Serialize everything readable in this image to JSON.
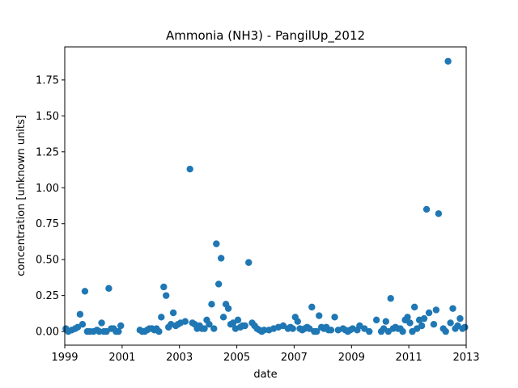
{
  "chart_data": {
    "type": "scatter",
    "title": "Ammonia (NH3) - PangilUp_2012",
    "xlabel": "date",
    "ylabel": "concentration [unknown units]",
    "xlim": [
      "1999-01-01",
      "2013-01-01"
    ],
    "ylim": [
      -0.095,
      1.98
    ],
    "x_ticks": [
      "1999",
      "2001",
      "2003",
      "2005",
      "2007",
      "2009",
      "2011",
      "2013"
    ],
    "y_ticks": [
      "0.00",
      "0.25",
      "0.50",
      "0.75",
      "1.00",
      "1.25",
      "1.50",
      "1.75"
    ],
    "grid": false,
    "legend": "none",
    "color": "#1f77b4",
    "points": [
      [
        "1999-01-15",
        0.02
      ],
      [
        "1999-02-15",
        0.0
      ],
      [
        "1999-04-01",
        0.01
      ],
      [
        "1999-05-15",
        0.02
      ],
      [
        "1999-06-15",
        0.03
      ],
      [
        "1999-07-15",
        0.12
      ],
      [
        "1999-08-15",
        0.05
      ],
      [
        "1999-09-15",
        0.28
      ],
      [
        "1999-10-15",
        0.0
      ],
      [
        "1999-11-15",
        0.0
      ],
      [
        "2000-01-01",
        0.0
      ],
      [
        "2000-02-15",
        0.01
      ],
      [
        "2000-03-15",
        0.0
      ],
      [
        "2000-04-15",
        0.06
      ],
      [
        "2000-05-15",
        0.0
      ],
      [
        "2000-06-15",
        0.0
      ],
      [
        "2000-07-15",
        0.3
      ],
      [
        "2000-08-15",
        0.02
      ],
      [
        "2000-09-15",
        0.02
      ],
      [
        "2000-10-15",
        0.0
      ],
      [
        "2000-11-15",
        0.0
      ],
      [
        "2000-12-15",
        0.04
      ],
      [
        "2001-08-15",
        0.01
      ],
      [
        "2001-09-15",
        0.0
      ],
      [
        "2001-10-15",
        0.0
      ],
      [
        "2001-11-15",
        0.01
      ],
      [
        "2001-12-15",
        0.02
      ],
      [
        "2002-01-15",
        0.02
      ],
      [
        "2002-02-15",
        0.01
      ],
      [
        "2002-03-15",
        0.02
      ],
      [
        "2002-04-15",
        0.0
      ],
      [
        "2002-05-15",
        0.1
      ],
      [
        "2002-06-15",
        0.31
      ],
      [
        "2002-07-15",
        0.25
      ],
      [
        "2002-08-15",
        0.03
      ],
      [
        "2002-09-15",
        0.05
      ],
      [
        "2002-10-15",
        0.13
      ],
      [
        "2002-11-15",
        0.04
      ],
      [
        "2002-12-15",
        0.05
      ],
      [
        "2003-01-15",
        0.06
      ],
      [
        "2003-03-15",
        0.07
      ],
      [
        "2003-05-15",
        1.13
      ],
      [
        "2003-06-15",
        0.06
      ],
      [
        "2003-07-15",
        0.05
      ],
      [
        "2003-08-15",
        0.02
      ],
      [
        "2003-09-15",
        0.04
      ],
      [
        "2003-10-15",
        0.02
      ],
      [
        "2003-11-15",
        0.02
      ],
      [
        "2003-12-15",
        0.08
      ],
      [
        "2004-01-15",
        0.05
      ],
      [
        "2004-02-15",
        0.19
      ],
      [
        "2004-03-15",
        0.02
      ],
      [
        "2004-04-15",
        0.61
      ],
      [
        "2004-05-15",
        0.33
      ],
      [
        "2004-06-15",
        0.51
      ],
      [
        "2004-07-15",
        0.1
      ],
      [
        "2004-08-15",
        0.19
      ],
      [
        "2004-09-15",
        0.16
      ],
      [
        "2004-10-15",
        0.05
      ],
      [
        "2004-11-15",
        0.06
      ],
      [
        "2004-12-15",
        0.02
      ],
      [
        "2005-01-15",
        0.08
      ],
      [
        "2005-02-15",
        0.03
      ],
      [
        "2005-03-15",
        0.04
      ],
      [
        "2005-04-15",
        0.04
      ],
      [
        "2005-06-01",
        0.48
      ],
      [
        "2005-07-15",
        0.06
      ],
      [
        "2005-08-15",
        0.04
      ],
      [
        "2005-09-15",
        0.02
      ],
      [
        "2005-10-15",
        0.01
      ],
      [
        "2005-11-15",
        0.0
      ],
      [
        "2005-12-15",
        0.01
      ],
      [
        "2006-02-15",
        0.01
      ],
      [
        "2006-04-15",
        0.02
      ],
      [
        "2006-06-15",
        0.03
      ],
      [
        "2006-08-15",
        0.04
      ],
      [
        "2006-10-15",
        0.02
      ],
      [
        "2006-11-15",
        0.03
      ],
      [
        "2006-12-15",
        0.02
      ],
      [
        "2007-01-15",
        0.1
      ],
      [
        "2007-02-15",
        0.07
      ],
      [
        "2007-03-15",
        0.02
      ],
      [
        "2007-04-15",
        0.01
      ],
      [
        "2007-05-15",
        0.02
      ],
      [
        "2007-06-15",
        0.03
      ],
      [
        "2007-07-15",
        0.02
      ],
      [
        "2007-08-15",
        0.17
      ],
      [
        "2007-09-15",
        0.0
      ],
      [
        "2007-10-15",
        0.0
      ],
      [
        "2007-11-15",
        0.11
      ],
      [
        "2007-12-15",
        0.03
      ],
      [
        "2008-01-15",
        0.02
      ],
      [
        "2008-02-15",
        0.03
      ],
      [
        "2008-03-15",
        0.01
      ],
      [
        "2008-04-15",
        0.01
      ],
      [
        "2008-06-01",
        0.1
      ],
      [
        "2008-07-15",
        0.01
      ],
      [
        "2008-09-15",
        0.02
      ],
      [
        "2008-10-15",
        0.01
      ],
      [
        "2008-11-15",
        0.0
      ],
      [
        "2008-12-15",
        0.01
      ],
      [
        "2009-01-15",
        0.02
      ],
      [
        "2009-03-15",
        0.01
      ],
      [
        "2009-04-15",
        0.04
      ],
      [
        "2009-06-15",
        0.02
      ],
      [
        "2009-08-15",
        0.0
      ],
      [
        "2009-11-15",
        0.08
      ],
      [
        "2010-01-15",
        0.0
      ],
      [
        "2010-02-15",
        0.02
      ],
      [
        "2010-03-15",
        0.07
      ],
      [
        "2010-04-15",
        0.0
      ],
      [
        "2010-05-15",
        0.23
      ],
      [
        "2010-06-15",
        0.02
      ],
      [
        "2010-07-15",
        0.03
      ],
      [
        "2010-08-15",
        0.02
      ],
      [
        "2010-09-15",
        0.02
      ],
      [
        "2010-10-15",
        0.0
      ],
      [
        "2010-11-15",
        0.08
      ],
      [
        "2010-12-15",
        0.1
      ],
      [
        "2011-01-15",
        0.06
      ],
      [
        "2011-02-15",
        0.0
      ],
      [
        "2011-03-15",
        0.17
      ],
      [
        "2011-04-15",
        0.02
      ],
      [
        "2011-05-15",
        0.08
      ],
      [
        "2011-06-15",
        0.04
      ],
      [
        "2011-07-15",
        0.09
      ],
      [
        "2011-08-15",
        0.85
      ],
      [
        "2011-09-15",
        0.13
      ],
      [
        "2011-11-15",
        0.05
      ],
      [
        "2011-12-15",
        0.15
      ],
      [
        "2012-01-15",
        0.82
      ],
      [
        "2012-03-15",
        0.02
      ],
      [
        "2012-04-15",
        0.0
      ],
      [
        "2012-05-15",
        1.88
      ],
      [
        "2012-06-15",
        0.06
      ],
      [
        "2012-07-15",
        0.16
      ],
      [
        "2012-08-15",
        0.02
      ],
      [
        "2012-09-15",
        0.04
      ],
      [
        "2012-10-15",
        0.09
      ],
      [
        "2012-11-15",
        0.02
      ],
      [
        "2012-12-15",
        0.03
      ]
    ]
  }
}
